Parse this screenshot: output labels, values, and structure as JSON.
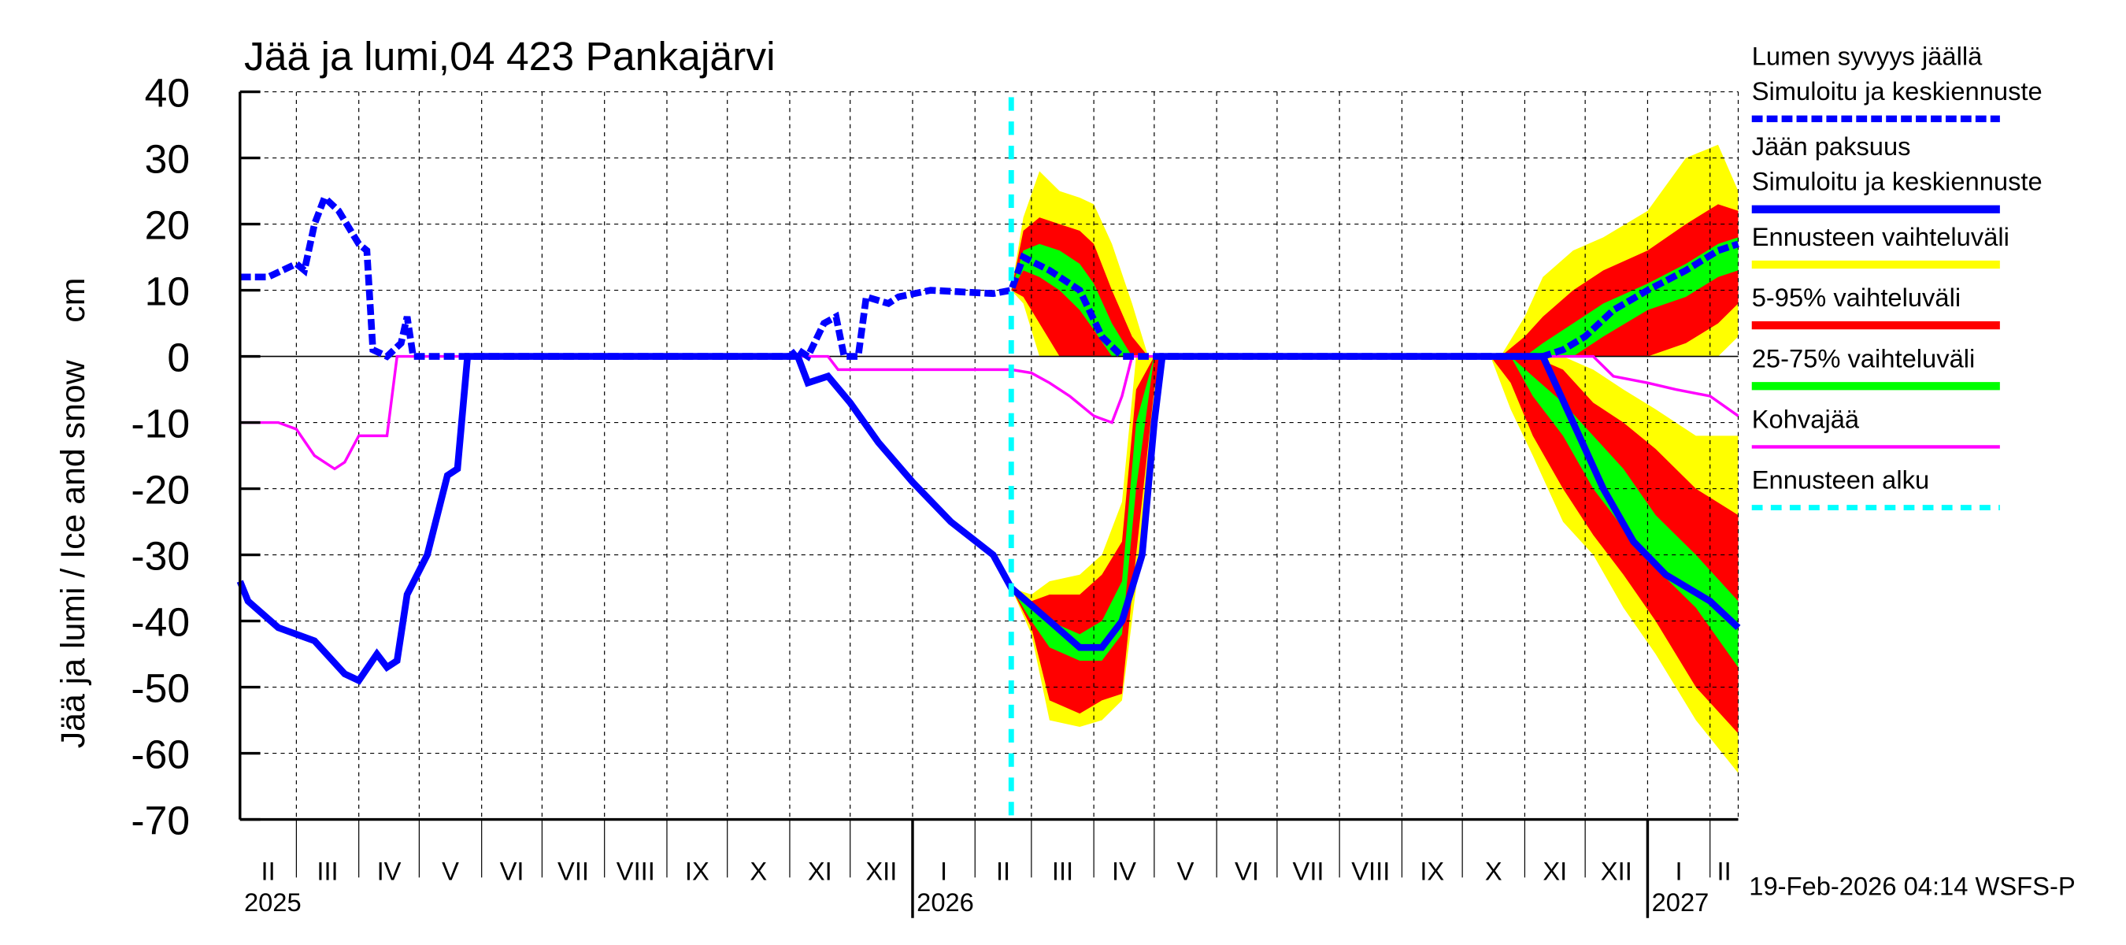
{
  "chart_data": {
    "type": "area",
    "title": "Jää ja lumi,04 423 Pankajärvi",
    "ylabel": "Jää ja lumi / Ice and snow    cm",
    "ylim": [
      -70,
      40
    ],
    "yticks": [
      "40",
      "30",
      "20",
      "10",
      "0",
      "-10",
      "-20",
      "-30",
      "-40",
      "-50",
      "-60",
      "-70"
    ],
    "xlim": [
      "2025-02-01",
      "2027-02-15"
    ],
    "grid": true,
    "legend_position": "right",
    "month_labels": [
      "II",
      "III",
      "IV",
      "V",
      "VI",
      "VII",
      "VIII",
      "IX",
      "X",
      "XI",
      "XII",
      "I",
      "II",
      "III",
      "IV",
      "V",
      "VI",
      "VII",
      "VIII",
      "IX",
      "X",
      "XI",
      "XII",
      "I",
      "II"
    ],
    "year_labels": [
      "2025",
      "2026",
      "2027"
    ],
    "forecast_start": "2026-02-19",
    "colors": {
      "snow": "#0000ff",
      "ice": "#0000ff",
      "range": "#ffff00",
      "p5_95": "#ff0000",
      "p25_75": "#00ff00",
      "kohva": "#ff00ff",
      "forecast_start": "#00ffff"
    },
    "legend": [
      {
        "line1": "Lumen syvyys jäällä",
        "line2": "Simuloitu ja keskiennuste",
        "style": "snow"
      },
      {
        "line1": "Jään paksuus",
        "line2": "Simuloitu ja keskiennuste",
        "style": "ice"
      },
      {
        "line1": "Ennusteen vaihteluväli",
        "style": "range"
      },
      {
        "line1": "5-95% vaihteluväli",
        "style": "p5_95"
      },
      {
        "line1": "25-75% vaihteluväli",
        "style": "p25_75"
      },
      {
        "line1": "Kohvajää",
        "style": "kohva"
      },
      {
        "line1": "Ennusteen alku",
        "style": "forecast_start"
      }
    ],
    "snow_depth": [
      [
        "2025-02-01",
        12
      ],
      [
        "2025-02-15",
        12
      ],
      [
        "2025-03-01",
        14
      ],
      [
        "2025-03-05",
        13
      ],
      [
        "2025-03-10",
        20
      ],
      [
        "2025-03-15",
        24
      ],
      [
        "2025-03-22",
        22
      ],
      [
        "2025-04-01",
        17
      ],
      [
        "2025-04-05",
        16
      ],
      [
        "2025-04-08",
        1
      ],
      [
        "2025-04-15",
        0
      ],
      [
        "2025-04-22",
        2
      ],
      [
        "2025-04-25",
        6
      ],
      [
        "2025-04-28",
        0
      ],
      [
        "2025-11-01",
        0
      ],
      [
        "2025-11-05",
        1
      ],
      [
        "2025-11-10",
        0
      ],
      [
        "2025-11-18",
        5
      ],
      [
        "2025-11-24",
        6
      ],
      [
        "2025-11-28",
        0
      ],
      [
        "2025-12-05",
        0
      ],
      [
        "2025-12-09",
        9
      ],
      [
        "2025-12-20",
        8
      ],
      [
        "2025-12-25",
        9
      ],
      [
        "2026-01-10",
        10
      ],
      [
        "2026-02-10",
        9.5
      ],
      [
        "2026-02-19",
        10
      ],
      [
        "2026-02-25",
        15
      ],
      [
        "2026-03-10",
        13
      ],
      [
        "2026-03-25",
        10
      ],
      [
        "2026-04-05",
        3
      ],
      [
        "2026-04-15",
        0
      ],
      [
        "2026-11-10",
        0
      ],
      [
        "2026-11-20",
        1
      ],
      [
        "2026-12-01",
        3
      ],
      [
        "2026-12-15",
        7
      ],
      [
        "2027-01-01",
        10
      ],
      [
        "2027-01-20",
        13
      ],
      [
        "2027-02-05",
        16
      ],
      [
        "2027-02-15",
        17
      ]
    ],
    "ice_thickness": [
      [
        "2025-02-01",
        -34
      ],
      [
        "2025-02-05",
        -37
      ],
      [
        "2025-02-20",
        -41
      ],
      [
        "2025-03-10",
        -43
      ],
      [
        "2025-03-25",
        -48
      ],
      [
        "2025-04-01",
        -49
      ],
      [
        "2025-04-10",
        -45
      ],
      [
        "2025-04-15",
        -47
      ],
      [
        "2025-04-20",
        -46
      ],
      [
        "2025-04-25",
        -36
      ],
      [
        "2025-05-05",
        -30
      ],
      [
        "2025-05-15",
        -18
      ],
      [
        "2025-05-20",
        -17
      ],
      [
        "2025-05-25",
        0
      ],
      [
        "2025-11-05",
        0
      ],
      [
        "2025-11-10",
        -4
      ],
      [
        "2025-11-20",
        -3
      ],
      [
        "2025-12-01",
        -7
      ],
      [
        "2025-12-15",
        -13
      ],
      [
        "2026-01-01",
        -19
      ],
      [
        "2026-01-20",
        -25
      ],
      [
        "2026-02-10",
        -30
      ],
      [
        "2026-02-19",
        -35
      ],
      [
        "2026-03-10",
        -40
      ],
      [
        "2026-03-25",
        -44
      ],
      [
        "2026-04-05",
        -44
      ],
      [
        "2026-04-15",
        -40
      ],
      [
        "2026-04-25",
        -30
      ],
      [
        "2026-05-01",
        -10
      ],
      [
        "2026-05-05",
        0
      ],
      [
        "2026-11-10",
        0
      ],
      [
        "2026-11-25",
        -10
      ],
      [
        "2026-12-10",
        -20
      ],
      [
        "2026-12-25",
        -28
      ],
      [
        "2027-01-10",
        -33
      ],
      [
        "2027-02-01",
        -37
      ],
      [
        "2027-02-15",
        -41
      ]
    ],
    "kohvajaa": [
      [
        "2025-02-01",
        -10
      ],
      [
        "2025-02-20",
        -10
      ],
      [
        "2025-03-01",
        -11
      ],
      [
        "2025-03-10",
        -15
      ],
      [
        "2025-03-20",
        -17
      ],
      [
        "2025-03-25",
        -16
      ],
      [
        "2025-04-01",
        -12
      ],
      [
        "2025-04-15",
        -12
      ],
      [
        "2025-04-20",
        0
      ],
      [
        "2025-11-20",
        0
      ],
      [
        "2025-11-25",
        -2
      ],
      [
        "2026-02-19",
        -2
      ],
      [
        "2026-03-01",
        -2.5
      ],
      [
        "2026-03-10",
        -4
      ],
      [
        "2026-03-20",
        -6
      ],
      [
        "2026-04-01",
        -9
      ],
      [
        "2026-04-10",
        -10
      ],
      [
        "2026-04-15",
        -6
      ],
      [
        "2026-04-20",
        0
      ],
      [
        "2026-12-05",
        0
      ],
      [
        "2026-12-15",
        -3
      ],
      [
        "2027-01-01",
        -4
      ],
      [
        "2027-01-15",
        -5
      ],
      [
        "2027-02-01",
        -6
      ],
      [
        "2027-02-15",
        -9
      ]
    ],
    "bands_fields": [
      "date",
      "range_low",
      "p5",
      "p25",
      "p75",
      "p95",
      "range_high"
    ],
    "bands": [
      [
        [
          "2026-02-19",
          10,
          10,
          10,
          10,
          10,
          10
        ],
        [
          "2026-02-25",
          8,
          9,
          13,
          16,
          19,
          21
        ],
        [
          "2026-03-05",
          0,
          5,
          12,
          17,
          21,
          28
        ],
        [
          "2026-03-15",
          0,
          0,
          10,
          16,
          20,
          25
        ],
        [
          "2026-03-25",
          0,
          0,
          7,
          14,
          19,
          24
        ],
        [
          "2026-04-01",
          0,
          0,
          4,
          11,
          17,
          23
        ],
        [
          "2026-04-10",
          0,
          0,
          0,
          5,
          10,
          17
        ],
        [
          "2026-04-20",
          0,
          0,
          0,
          0,
          3,
          8
        ],
        [
          "2026-04-28",
          0,
          0,
          0,
          0,
          0,
          0
        ]
      ],
      [
        [
          "2026-10-20",
          0,
          0,
          0,
          0,
          0,
          0
        ],
        [
          "2026-11-01",
          0,
          0,
          0,
          0,
          3,
          6
        ],
        [
          "2026-11-10",
          0,
          0,
          0,
          2,
          6,
          12
        ],
        [
          "2026-11-25",
          0,
          0,
          0,
          5,
          10,
          16
        ],
        [
          "2026-12-10",
          0,
          0,
          3,
          8,
          13,
          18
        ],
        [
          "2027-01-01",
          0,
          0,
          7,
          11,
          16,
          22
        ],
        [
          "2027-01-20",
          0,
          2,
          9,
          14,
          20,
          30
        ],
        [
          "2027-02-05",
          0,
          5,
          12,
          17,
          23,
          32
        ],
        [
          "2027-02-15",
          3,
          8,
          13,
          18,
          22,
          25
        ]
      ],
      [
        [
          "2026-02-19",
          -35,
          -35,
          -35,
          -35,
          -35,
          -35
        ],
        [
          "2026-03-01",
          -42,
          -41,
          -40,
          -38,
          -37,
          -36
        ],
        [
          "2026-03-10",
          -55,
          -52,
          -44,
          -40,
          -36,
          -34
        ],
        [
          "2026-03-25",
          -56,
          -54,
          -46,
          -42,
          -36,
          -33
        ],
        [
          "2026-04-05",
          -55,
          -52,
          -46,
          -40,
          -33,
          -30
        ],
        [
          "2026-04-15",
          -52,
          -51,
          -42,
          -34,
          -28,
          -22
        ],
        [
          "2026-04-22",
          -35,
          -30,
          -20,
          -10,
          -5,
          0
        ],
        [
          "2026-05-01",
          -10,
          -5,
          0,
          0,
          0,
          0
        ],
        [
          "2026-05-05",
          0,
          0,
          0,
          0,
          0,
          0
        ]
      ],
      [
        [
          "2026-10-15",
          0,
          0,
          0,
          0,
          0,
          0
        ],
        [
          "2026-10-25",
          -8,
          -4,
          0,
          0,
          0,
          0
        ],
        [
          "2026-11-05",
          -15,
          -12,
          -6,
          -3,
          0,
          0
        ],
        [
          "2026-11-20",
          -25,
          -20,
          -12,
          -7,
          -2,
          0
        ],
        [
          "2026-12-05",
          -30,
          -27,
          -20,
          -12,
          -7,
          -2
        ],
        [
          "2026-12-20",
          -38,
          -33,
          -26,
          -17,
          -10,
          -5
        ],
        [
          "2027-01-05",
          -45,
          -40,
          -32,
          -24,
          -14,
          -8
        ],
        [
          "2027-01-25",
          -55,
          -50,
          -38,
          -30,
          -20,
          -12
        ],
        [
          "2027-02-15",
          -63,
          -57,
          -47,
          -37,
          -24,
          -12
        ]
      ]
    ]
  },
  "footer": {
    "timestamp": "19-Feb-2026 04:14 WSFS-P"
  }
}
